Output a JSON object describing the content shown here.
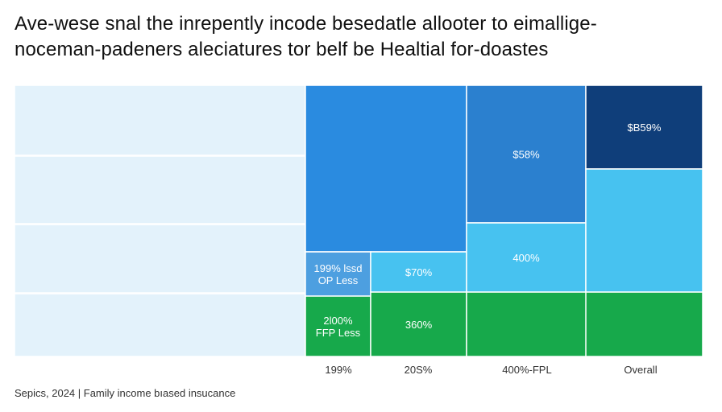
{
  "title_lines": [
    "Ave-wese snal the inrepently incode besedatle allooter to eimallige-",
    "noceman-padeners aleciatures tor belf be Healtial for-doastes"
  ],
  "source": "Sepics, 2024 | Family income bıased insucance",
  "chart_data": {
    "type": "treemap",
    "categories": [
      "199%",
      "20S%",
      "400%-FPL",
      "Overall"
    ],
    "cells": [
      {
        "label": "",
        "color": "#e3f2fb"
      },
      {
        "label": "",
        "color": "#e3f2fb"
      },
      {
        "label": "",
        "color": "#e3f2fb"
      },
      {
        "label": "",
        "color": "#e3f2fb"
      },
      {
        "label": "",
        "color": "#2a8be0"
      },
      {
        "label": [
          "199% lssd",
          "OP Less"
        ],
        "color": "#4d9fe0"
      },
      {
        "label": [
          "2l00%",
          "FFP Less"
        ],
        "color": "#17a94b"
      },
      {
        "label": "$70%",
        "color": "#47c2f0"
      },
      {
        "label": "360%",
        "color": "#17a94b"
      },
      {
        "label": "$58%",
        "color": "#2b80cf"
      },
      {
        "label": "400%",
        "color": "#47c2f0"
      },
      {
        "label": "",
        "color": "#17a94b"
      },
      {
        "label": "$B59%",
        "color": "#0f3e7a"
      },
      {
        "label": "",
        "color": "#47c2f0"
      },
      {
        "label": "",
        "color": "#17a94b"
      }
    ],
    "grid": false,
    "legend": "none"
  }
}
